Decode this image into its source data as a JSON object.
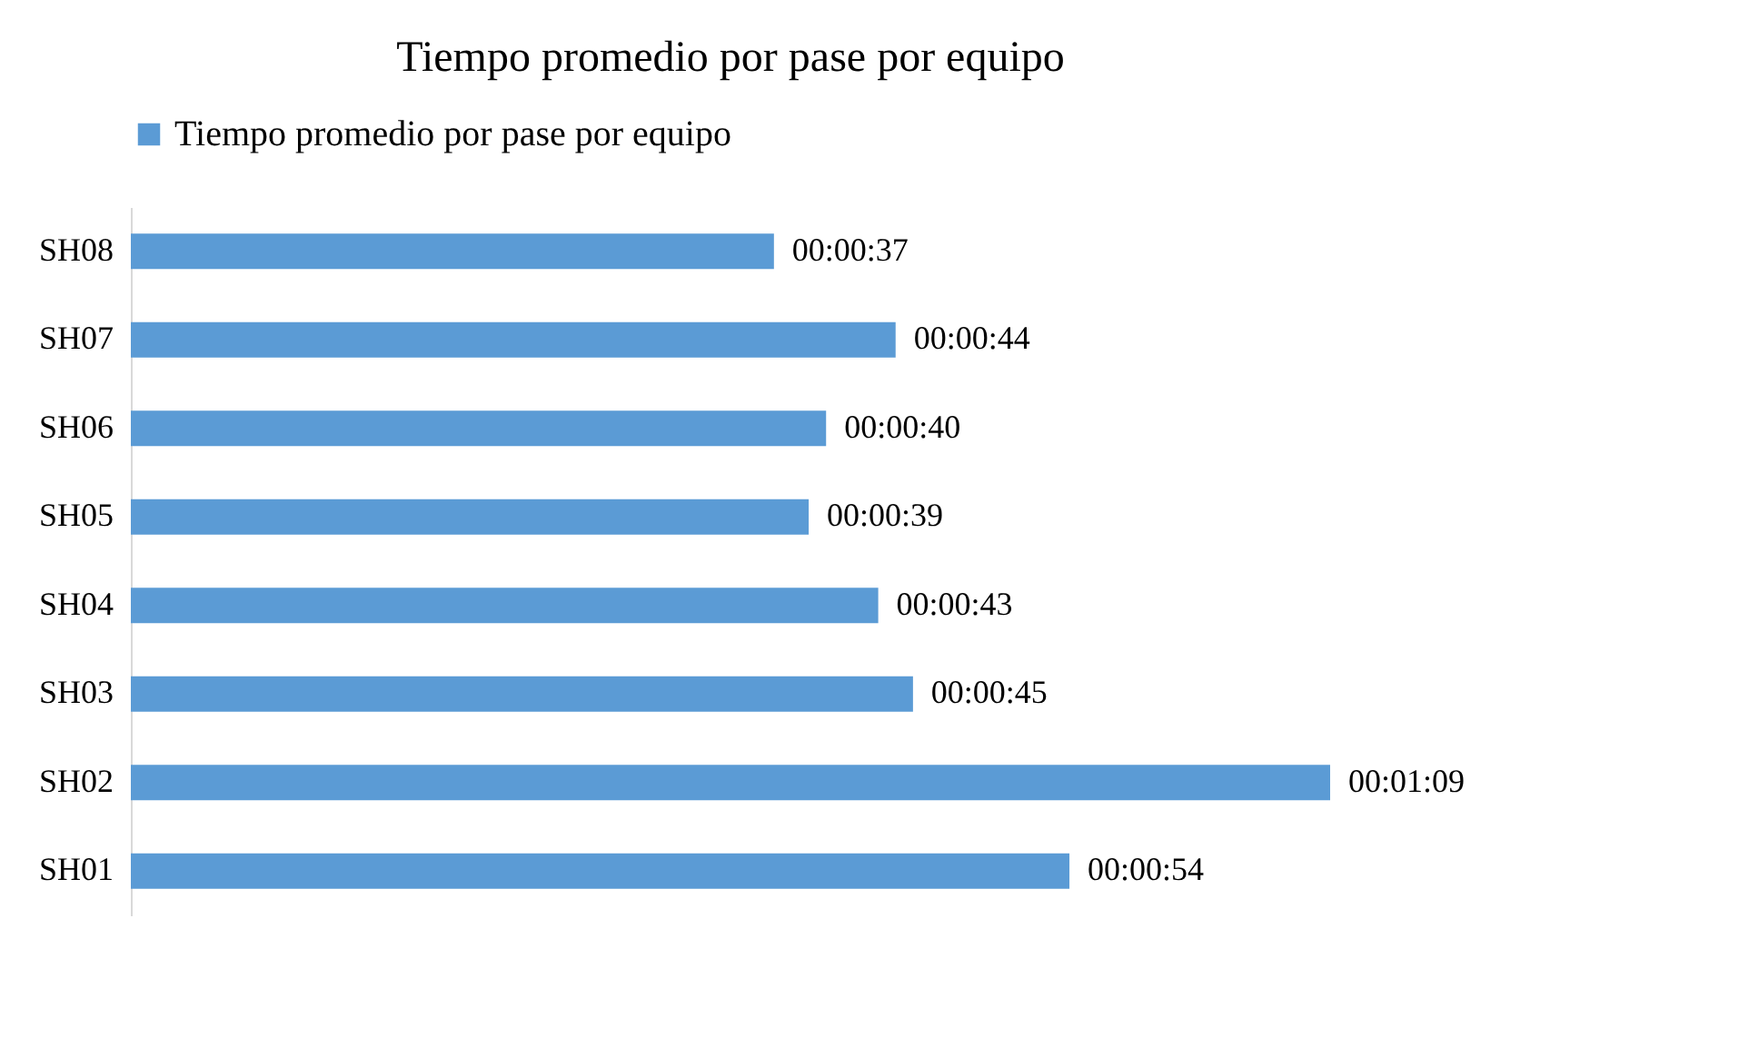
{
  "chart_data": {
    "type": "bar",
    "orientation": "horizontal",
    "title": "Tiempo promedio por pase por equipo",
    "categories": [
      "SH08",
      "SH07",
      "SH06",
      "SH05",
      "SH04",
      "SH03",
      "SH02",
      "SH01"
    ],
    "series": [
      {
        "name": "Tiempo promedio por pase por equipo",
        "color": "#5b9bd5",
        "values": [
          37,
          44,
          40,
          39,
          43,
          45,
          69,
          54
        ],
        "value_labels": [
          "00:00:37",
          "00:00:44",
          "00:00:40",
          "00:00:39",
          "00:00:43",
          "00:00:45",
          "00:01:09",
          "00:00:54"
        ]
      }
    ],
    "legend": "top",
    "tick_labels": "y"
  }
}
